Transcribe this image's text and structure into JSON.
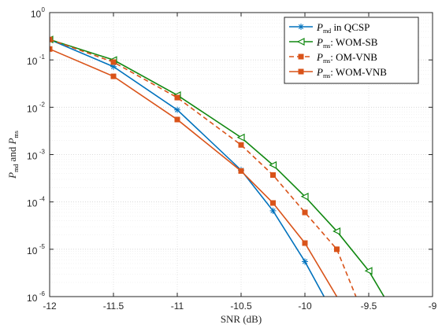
{
  "chart_data": {
    "type": "line",
    "xlabel": "SNR (dB)",
    "ylabel": {
      "main": "P",
      "sub1": "md",
      "mid": " and ",
      "main2": "P",
      "sub2": "ms"
    },
    "xlim": [
      -12,
      -9
    ],
    "ylim_log10": [
      -6,
      0
    ],
    "y_scale": "log",
    "x_ticks": [
      -12,
      -11.5,
      -11,
      -10.5,
      -10,
      -9.5,
      -9
    ],
    "x_tick_labels": [
      "-12",
      "-11.5",
      "-11",
      "-10.5",
      "-10",
      "-9.5",
      "-9"
    ],
    "y_tick_exponents": [
      0,
      -1,
      -2,
      -3,
      -4,
      -5,
      -6
    ],
    "y_tick_base": "10",
    "grid": true,
    "legend_position": "top-right",
    "series": [
      {
        "legend_main": "P",
        "legend_sub": "md",
        "legend_text": " in QCSP",
        "color": "#0072BD",
        "dash": "solid",
        "marker": "asterisk",
        "x": [
          -12,
          -11.5,
          -11,
          -10.5,
          -10.25,
          -10,
          -9.85
        ],
        "y": [
          0.27,
          0.072,
          0.0088,
          0.00047,
          6.5e-05,
          5.5e-06,
          1e-06
        ]
      },
      {
        "legend_main": "P",
        "legend_sub": "ms",
        "legend_text": ": WOM-SB",
        "color": "#118811",
        "dash": "solid",
        "marker": "triangle-left",
        "x": [
          -12,
          -11.5,
          -11,
          -10.5,
          -10.25,
          -10,
          -9.75,
          -9.5,
          -9.38
        ],
        "y": [
          0.27,
          0.1,
          0.018,
          0.0023,
          0.0006,
          0.00013,
          2.4e-05,
          3.5e-06,
          1e-06
        ]
      },
      {
        "legend_main": "P",
        "legend_sub": "ms",
        "legend_text": ": OM-VNB",
        "color": "#D95319",
        "dash": "dashed",
        "marker": "square",
        "x": [
          -12,
          -11.5,
          -11,
          -10.5,
          -10.25,
          -10,
          -9.75,
          -9.6
        ],
        "y": [
          0.27,
          0.09,
          0.016,
          0.0016,
          0.00037,
          6e-05,
          1e-05,
          1e-06
        ]
      },
      {
        "legend_main": "P",
        "legend_sub": "ms",
        "legend_text": ": WOM-VNB",
        "color": "#D95319",
        "dash": "solid",
        "marker": "square",
        "x": [
          -12,
          -11.5,
          -11,
          -10.5,
          -10.25,
          -10,
          -9.75
        ],
        "y": [
          0.17,
          0.045,
          0.0055,
          0.00045,
          9.5e-05,
          1.35e-05,
          1e-06
        ]
      }
    ]
  }
}
